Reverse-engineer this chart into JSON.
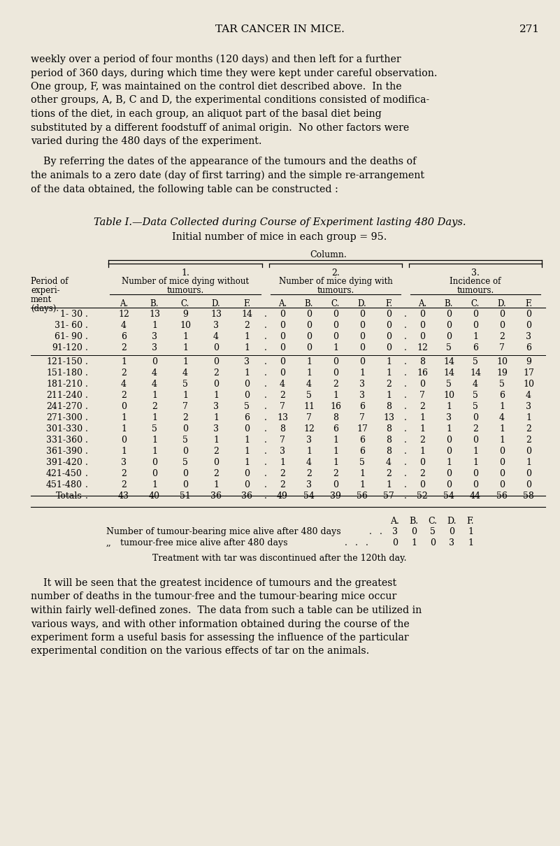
{
  "bg_color": "#ede8dc",
  "header_title": "TAR CANCER IN MICE.",
  "page_num": "271",
  "para1": "weekly over a period of four months (120 days) and then left for a further\nperiod of 360 days, during which time they were kept under careful observation.\nOne group, F, was maintained on the control diet described above.  In the\nother groups, A, B, C and D, the experimental conditions consisted of modifica-\ntions of the diet, in each group, an aliquot part of the basal diet being\nsubstituted by a different foodstuff of animal origin.  No other factors were\nvaried during the 480 days of the experiment.",
  "para2_indent": "    By referring the dates of the appearance of the tumours and the deaths of",
  "para2_rest": "the animals to a zero date (day of first tarring) and the simple re-arrangement\nof the data obtained, the following table can be constructed :",
  "table_title": "Table I.—Data Collected during Course of Experiment lasting 480 Days.",
  "table_subtitle": "Initial number of mice in each group = 95.",
  "col_header": "Column.",
  "col1_label": "1.",
  "col2_label": "2.",
  "col3_label": "3.",
  "col1_desc_1": "Number of mice dying without",
  "col1_desc_2": "tumours.",
  "col2_desc_1": "Number of mice dying with",
  "col2_desc_2": "tumours.",
  "col3_desc_1": "Incidence of",
  "col3_desc_2": "tumours.",
  "row_header_lines": [
    "Period of",
    "experi-",
    "ment",
    "(days)."
  ],
  "subgroups": [
    "A.",
    "B.",
    "C.",
    "D.",
    "F."
  ],
  "periods": [
    "1- 30",
    "31- 60",
    "61- 90",
    "91-120",
    "121-150",
    "151-180",
    "181-210",
    "211-240",
    "241-270",
    "271-300",
    "301-330",
    "331-360",
    "361-390",
    "391-420",
    "421-450",
    "451-480",
    "Totals"
  ],
  "col1_data": [
    [
      12,
      13,
      9,
      13,
      14
    ],
    [
      4,
      1,
      10,
      3,
      2
    ],
    [
      6,
      3,
      1,
      4,
      1
    ],
    [
      2,
      3,
      1,
      0,
      1
    ],
    [
      1,
      0,
      1,
      0,
      3
    ],
    [
      2,
      4,
      4,
      2,
      1
    ],
    [
      4,
      4,
      5,
      0,
      0
    ],
    [
      2,
      1,
      1,
      1,
      0
    ],
    [
      0,
      2,
      7,
      3,
      5
    ],
    [
      1,
      1,
      2,
      1,
      6
    ],
    [
      1,
      5,
      0,
      3,
      0
    ],
    [
      0,
      1,
      5,
      1,
      1
    ],
    [
      1,
      1,
      0,
      2,
      1
    ],
    [
      3,
      0,
      5,
      0,
      1
    ],
    [
      2,
      0,
      0,
      2,
      0
    ],
    [
      2,
      1,
      0,
      1,
      0
    ],
    [
      43,
      40,
      51,
      36,
      36
    ]
  ],
  "col2_data": [
    [
      0,
      0,
      0,
      0,
      0
    ],
    [
      0,
      0,
      0,
      0,
      0
    ],
    [
      0,
      0,
      0,
      0,
      0
    ],
    [
      0,
      0,
      1,
      0,
      0
    ],
    [
      0,
      1,
      0,
      0,
      1
    ],
    [
      0,
      1,
      0,
      1,
      1
    ],
    [
      4,
      4,
      2,
      3,
      2
    ],
    [
      2,
      5,
      1,
      3,
      1
    ],
    [
      7,
      11,
      16,
      6,
      8
    ],
    [
      13,
      7,
      8,
      7,
      13
    ],
    [
      8,
      12,
      6,
      17,
      8
    ],
    [
      7,
      3,
      1,
      6,
      8
    ],
    [
      3,
      1,
      1,
      6,
      8
    ],
    [
      1,
      4,
      1,
      5,
      4
    ],
    [
      2,
      2,
      2,
      1,
      2
    ],
    [
      2,
      3,
      0,
      1,
      1
    ],
    [
      49,
      54,
      39,
      56,
      57
    ]
  ],
  "col3_data": [
    [
      0,
      0,
      0,
      0,
      0
    ],
    [
      0,
      0,
      0,
      0,
      0
    ],
    [
      0,
      0,
      1,
      2,
      3
    ],
    [
      12,
      5,
      6,
      7,
      6
    ],
    [
      8,
      14,
      5,
      10,
      9
    ],
    [
      16,
      14,
      14,
      19,
      17
    ],
    [
      0,
      5,
      4,
      5,
      10
    ],
    [
      7,
      10,
      5,
      6,
      4
    ],
    [
      2,
      1,
      5,
      1,
      3
    ],
    [
      1,
      3,
      0,
      4,
      1
    ],
    [
      1,
      1,
      2,
      1,
      2
    ],
    [
      2,
      0,
      0,
      1,
      2
    ],
    [
      1,
      0,
      1,
      0,
      0
    ],
    [
      0,
      1,
      1,
      0,
      1
    ],
    [
      2,
      0,
      0,
      0,
      0
    ],
    [
      0,
      0,
      0,
      0,
      0
    ],
    [
      52,
      54,
      44,
      56,
      58
    ]
  ],
  "footer_bearing": "Number of tumour-bearing mice alive after 480 days",
  "footer_free_prefix": ",,",
  "footer_free": "tumour-free mice alive after 480 days",
  "bearing_vals": [
    3,
    0,
    5,
    0,
    1
  ],
  "free_vals": [
    0,
    1,
    0,
    3,
    1
  ],
  "tar_note": "Treatment with tar was discontinued after the 120th day.",
  "para3_indent": "    It will be seen that the greatest incidence of tumours and the greatest",
  "para3_rest": "number of deaths in the tumour-free and the tumour-bearing mice occur\nwithin fairly well-defined zones.  The data from such a table can be utilized in\nvarious ways, and with other information obtained during the course of the\nexperiment form a useful basis for assessing the influence of the particular\nexperimental condition on the various effects of tar on the animals."
}
